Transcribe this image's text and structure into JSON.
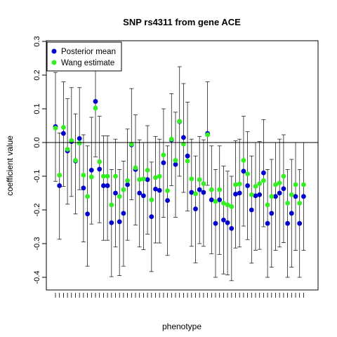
{
  "chart_data": {
    "type": "scatter",
    "title": "SNP rs4311 from gene ACE",
    "xlabel": "phenotype",
    "ylabel": "coefficient value",
    "ylim": [
      -0.42,
      0.3
    ],
    "yticks": [
      "-0.4",
      "-0.3",
      "-0.2",
      "-0.1",
      "0.0",
      "0.1",
      "0.2",
      "0.3"
    ],
    "reference_line": 0,
    "legend_position": "top-left",
    "n_phenotypes": 63,
    "series": [
      {
        "name": "Posterior mean",
        "color": "#0000cc",
        "values": [
          0.047,
          -0.128,
          0.027,
          -0.025,
          0.003,
          -0.055,
          0.012,
          -0.135,
          -0.212,
          -0.082,
          0.122,
          -0.079,
          -0.128,
          -0.128,
          -0.238,
          -0.15,
          -0.235,
          -0.21,
          -0.125,
          -0.007,
          -0.08,
          -0.15,
          -0.158,
          -0.11,
          -0.22,
          -0.138,
          -0.142,
          -0.06,
          -0.172,
          0.008,
          -0.065,
          0.062,
          0.015,
          -0.04,
          -0.148,
          -0.197,
          -0.14,
          -0.148,
          0.027,
          -0.17,
          -0.24,
          -0.17,
          -0.23,
          -0.238,
          -0.255,
          -0.153,
          -0.15,
          -0.085,
          -0.128,
          -0.2,
          -0.158,
          -0.155,
          -0.09,
          -0.24,
          -0.21,
          -0.16,
          -0.15,
          -0.137,
          -0.24,
          -0.21,
          -0.16,
          -0.24,
          -0.16
        ],
        "upper": [
          0.208,
          0.028,
          0.18,
          0.13,
          0.163,
          0.085,
          0.163,
          0.023,
          -0.01,
          0.075,
          0.287,
          0.078,
          0.02,
          0.02,
          -0.08,
          0.01,
          -0.08,
          -0.055,
          0.04,
          0.16,
          0.082,
          0.008,
          0.0,
          0.05,
          -0.058,
          0.018,
          0.01,
          0.1,
          -0.01,
          0.145,
          0.09,
          0.225,
          0.175,
          0.12,
          0.01,
          -0.04,
          0.018,
          0.008,
          0.18,
          -0.01,
          -0.08,
          -0.01,
          -0.07,
          -0.085,
          -0.1,
          0.005,
          0.01,
          0.078,
          0.032,
          -0.04,
          0.0,
          0.003,
          0.068,
          -0.08,
          -0.05,
          0.0,
          0.01,
          0.023,
          -0.08,
          -0.05,
          0.0,
          -0.08,
          0.0
        ],
        "lower": [
          -0.115,
          -0.287,
          -0.13,
          -0.183,
          -0.16,
          -0.212,
          -0.14,
          -0.295,
          -0.367,
          -0.242,
          -0.043,
          -0.238,
          -0.29,
          -0.29,
          -0.398,
          -0.31,
          -0.395,
          -0.367,
          -0.29,
          -0.17,
          -0.245,
          -0.31,
          -0.318,
          -0.272,
          -0.383,
          -0.298,
          -0.298,
          -0.222,
          -0.335,
          -0.128,
          -0.222,
          -0.1,
          -0.148,
          -0.203,
          -0.308,
          -0.357,
          -0.3,
          -0.308,
          -0.127,
          -0.33,
          -0.4,
          -0.332,
          -0.39,
          -0.393,
          -0.41,
          -0.313,
          -0.31,
          -0.248,
          -0.288,
          -0.358,
          -0.32,
          -0.317,
          -0.25,
          -0.4,
          -0.37,
          -0.32,
          -0.31,
          -0.297,
          -0.4,
          -0.37,
          -0.32,
          -0.4,
          -0.32
        ]
      },
      {
        "name": "Wang estimate",
        "color": "#33ee22",
        "values": [
          0.043,
          -0.097,
          0.045,
          -0.02,
          0.006,
          -0.053,
          -0.002,
          -0.097,
          -0.16,
          -0.102,
          0.102,
          -0.057,
          -0.1,
          -0.1,
          -0.185,
          -0.1,
          -0.16,
          -0.14,
          -0.113,
          -0.005,
          -0.075,
          -0.11,
          -0.108,
          -0.082,
          -0.17,
          -0.104,
          -0.1,
          -0.037,
          -0.143,
          0.01,
          -0.053,
          0.063,
          -0.005,
          -0.055,
          -0.108,
          -0.152,
          -0.11,
          -0.122,
          0.023,
          -0.14,
          -0.175,
          -0.14,
          -0.18,
          -0.185,
          -0.19,
          -0.125,
          -0.123,
          -0.053,
          -0.093,
          -0.155,
          -0.13,
          -0.122,
          -0.113,
          -0.185,
          -0.16,
          -0.125,
          -0.12,
          -0.1,
          -0.18,
          -0.155,
          -0.125,
          -0.18,
          -0.125
        ]
      }
    ]
  }
}
